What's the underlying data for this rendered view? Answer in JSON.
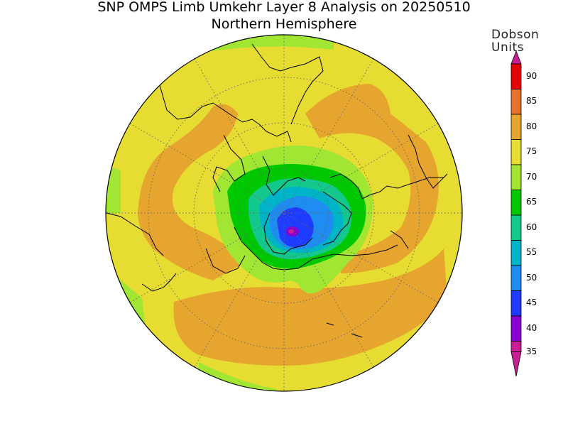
{
  "title": "SNP OMPS Limb Umkehr Layer 8 Analysis on 20250510",
  "subtitle": "Northern Hemisphere",
  "colorbar": {
    "units_line1": "Dobson",
    "units_line2": "Units",
    "ticks": [
      "90",
      "85",
      "80",
      "75",
      "70",
      "65",
      "60",
      "55",
      "50",
      "45",
      "40",
      "35"
    ],
    "colors": {
      "over": "#c81e96",
      "85-90": "#e60000",
      "80-85": "#e6732b",
      "75-80": "#e6a52e",
      "70-75": "#e6dc32",
      "65-70": "#a0e632",
      "60-65": "#00c800",
      "55-60": "#12c88c",
      "50-55": "#00b4c8",
      "45-50": "#1e8cf0",
      "40-45": "#1e3cff",
      "35-40": "#8c00d2",
      "under": "#c81e96"
    }
  }
}
